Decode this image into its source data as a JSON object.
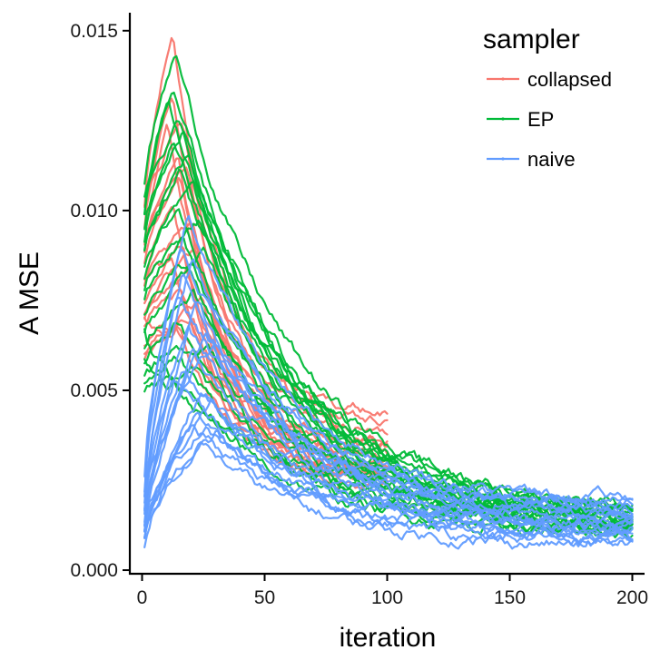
{
  "chart_data": {
    "type": "line",
    "title": "",
    "xlabel": "iteration",
    "ylabel": "A MSE",
    "xlim": [
      -5,
      205
    ],
    "ylim": [
      -0.0001,
      0.0155
    ],
    "x_ticks": [
      0,
      50,
      100,
      150,
      200
    ],
    "x_tick_labels": [
      "0",
      "50",
      "100",
      "150",
      "200"
    ],
    "y_ticks": [
      0.0,
      0.005,
      0.01,
      0.015
    ],
    "y_tick_labels": [
      "0.000",
      "0.005",
      "0.010",
      "0.015"
    ],
    "legend": {
      "title": "sampler",
      "position": "top-right",
      "entries": [
        {
          "label": "collapsed",
          "color": "#F8766D"
        },
        {
          "label": "EP",
          "color": "#00BA38"
        },
        {
          "label": "naive",
          "color": "#619CFF"
        }
      ]
    },
    "series": [
      {
        "name": "collapsed",
        "color": "#F8766D",
        "x_end": 100,
        "noise": 0.00022,
        "runs": [
          [
            0.01,
            0.0148,
            12,
            0.004
          ],
          [
            0.0095,
            0.0132,
            12,
            0.0038
          ],
          [
            0.0102,
            0.0125,
            16,
            0.0044
          ],
          [
            0.009,
            0.0122,
            10,
            0.0035
          ],
          [
            0.0088,
            0.0118,
            14,
            0.0033
          ],
          [
            0.0092,
            0.0112,
            18,
            0.0036
          ],
          [
            0.0085,
            0.0106,
            15,
            0.0031
          ],
          [
            0.008,
            0.01,
            12,
            0.003
          ],
          [
            0.0078,
            0.0095,
            20,
            0.0028
          ],
          [
            0.0075,
            0.009,
            16,
            0.0027
          ],
          [
            0.0072,
            0.0087,
            22,
            0.0029
          ],
          [
            0.008,
            0.0085,
            12,
            0.0032
          ],
          [
            0.007,
            0.0082,
            18,
            0.0026
          ],
          [
            0.0068,
            0.0079,
            15,
            0.0025
          ],
          [
            0.006,
            0.0075,
            24,
            0.0027
          ],
          [
            0.0058,
            0.0071,
            20,
            0.0024
          ],
          [
            0.0062,
            0.0069,
            14,
            0.0026
          ],
          [
            0.007,
            0.0065,
            18,
            0.003
          ]
        ]
      },
      {
        "name": "EP",
        "color": "#00BA38",
        "x_end": 200,
        "noise": 0.00024,
        "runs": [
          [
            0.0108,
            0.0142,
            13,
            0.0018
          ],
          [
            0.01,
            0.0135,
            12,
            0.0016
          ],
          [
            0.0098,
            0.0128,
            10,
            0.0015
          ],
          [
            0.0105,
            0.0125,
            14,
            0.0019
          ],
          [
            0.0095,
            0.012,
            16,
            0.0014
          ],
          [
            0.0092,
            0.0118,
            12,
            0.0017
          ],
          [
            0.009,
            0.0114,
            18,
            0.0016
          ],
          [
            0.0088,
            0.011,
            15,
            0.0013
          ],
          [
            0.0085,
            0.0105,
            20,
            0.0015
          ],
          [
            0.008,
            0.01,
            14,
            0.0012
          ],
          [
            0.0078,
            0.0097,
            22,
            0.0014
          ],
          [
            0.0075,
            0.0092,
            16,
            0.0011
          ],
          [
            0.007,
            0.0088,
            24,
            0.0016
          ],
          [
            0.0065,
            0.0082,
            18,
            0.0012
          ],
          [
            0.0062,
            0.0077,
            20,
            0.0013
          ],
          [
            0.0058,
            0.007,
            14,
            0.0011
          ],
          [
            0.0055,
            0.0063,
            26,
            0.0015
          ],
          [
            0.0052,
            0.0058,
            15,
            0.0012
          ],
          [
            0.005,
            0.0055,
            22,
            0.0014
          ],
          [
            0.0058,
            0.0052,
            12,
            0.0018
          ],
          [
            0.0066,
            0.0049,
            16,
            0.0011
          ]
        ]
      },
      {
        "name": "naive",
        "color": "#619CFF",
        "x_end": 200,
        "noise": 0.00022,
        "runs": [
          [
            0.0025,
            0.0097,
            18,
            0.0019
          ],
          [
            0.002,
            0.009,
            15,
            0.0017
          ],
          [
            0.0018,
            0.0085,
            20,
            0.0018
          ],
          [
            0.0015,
            0.008,
            16,
            0.0016
          ],
          [
            0.0022,
            0.0076,
            14,
            0.0015
          ],
          [
            0.0012,
            0.0072,
            22,
            0.0014
          ],
          [
            0.0016,
            0.0068,
            18,
            0.0013
          ],
          [
            0.001,
            0.0064,
            25,
            0.0015
          ],
          [
            0.0014,
            0.006,
            20,
            0.0012
          ],
          [
            0.0011,
            0.0056,
            16,
            0.0011
          ],
          [
            0.0009,
            0.005,
            24,
            0.0013
          ],
          [
            0.0013,
            0.0046,
            28,
            0.001
          ],
          [
            0.0008,
            0.0043,
            22,
            0.0012
          ],
          [
            0.001,
            0.0041,
            26,
            0.0009
          ],
          [
            0.0007,
            0.0039,
            20,
            0.0011
          ],
          [
            0.0012,
            0.0037,
            30,
            0.0008
          ],
          [
            0.0009,
            0.0035,
            24,
            0.0007
          ],
          [
            0.0016,
            0.0052,
            12,
            0.002
          ],
          [
            0.002,
            0.0062,
            28,
            0.0018
          ]
        ]
      }
    ]
  }
}
